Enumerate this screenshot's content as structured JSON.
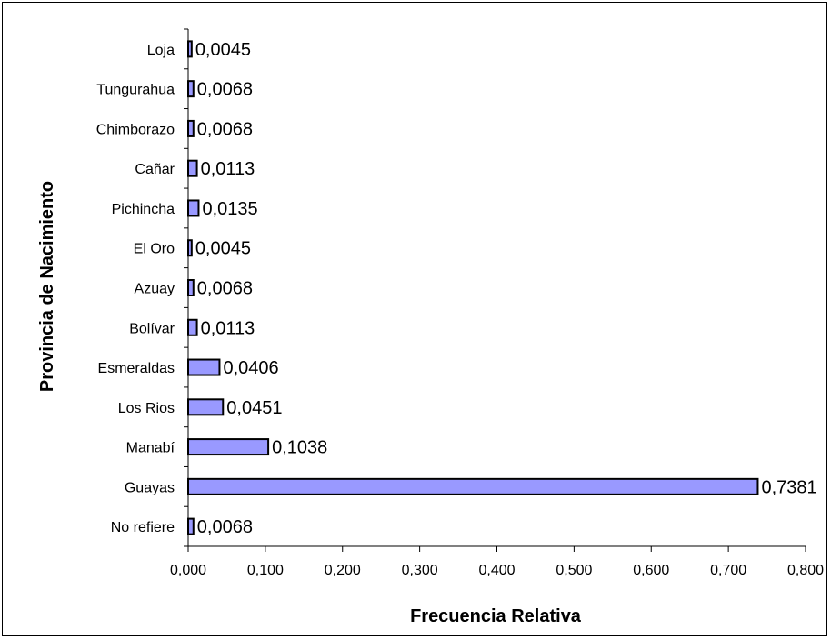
{
  "chart_data": {
    "type": "bar",
    "orientation": "horizontal",
    "categories": [
      "No refiere",
      "Guayas",
      "Manabí",
      "Los Rios",
      "Esmeraldas",
      "Bolívar",
      "Azuay",
      "El Oro",
      "Pichincha",
      "Cañar",
      "Chimborazo",
      "Tungurahua",
      "Loja"
    ],
    "values": [
      0.0068,
      0.7381,
      0.1038,
      0.0451,
      0.0406,
      0.0113,
      0.0068,
      0.0045,
      0.0135,
      0.0113,
      0.0068,
      0.0068,
      0.0045
    ],
    "value_labels": [
      "0,0068",
      "0,7381",
      "0,1038",
      "0,0451",
      "0,0406",
      "0,0113",
      "0,0068",
      "0,0045",
      "0,0135",
      "0,0113",
      "0,0068",
      "0,0068",
      "0,0045"
    ],
    "xlabel": "Frecuencia Relativa",
    "ylabel": "Provincia de Nacimiento",
    "xlim": [
      0,
      0.8
    ],
    "xticks": [
      0,
      0.1,
      0.2,
      0.3,
      0.4,
      0.5,
      0.6,
      0.7,
      0.8
    ],
    "xtick_labels": [
      "0,000",
      "0,100",
      "0,200",
      "0,300",
      "0,400",
      "0,500",
      "0,600",
      "0,700",
      "0,800"
    ],
    "grid": false,
    "legend": "none",
    "bar_color": "#9999FF",
    "bar_edge_color": "#000000"
  }
}
